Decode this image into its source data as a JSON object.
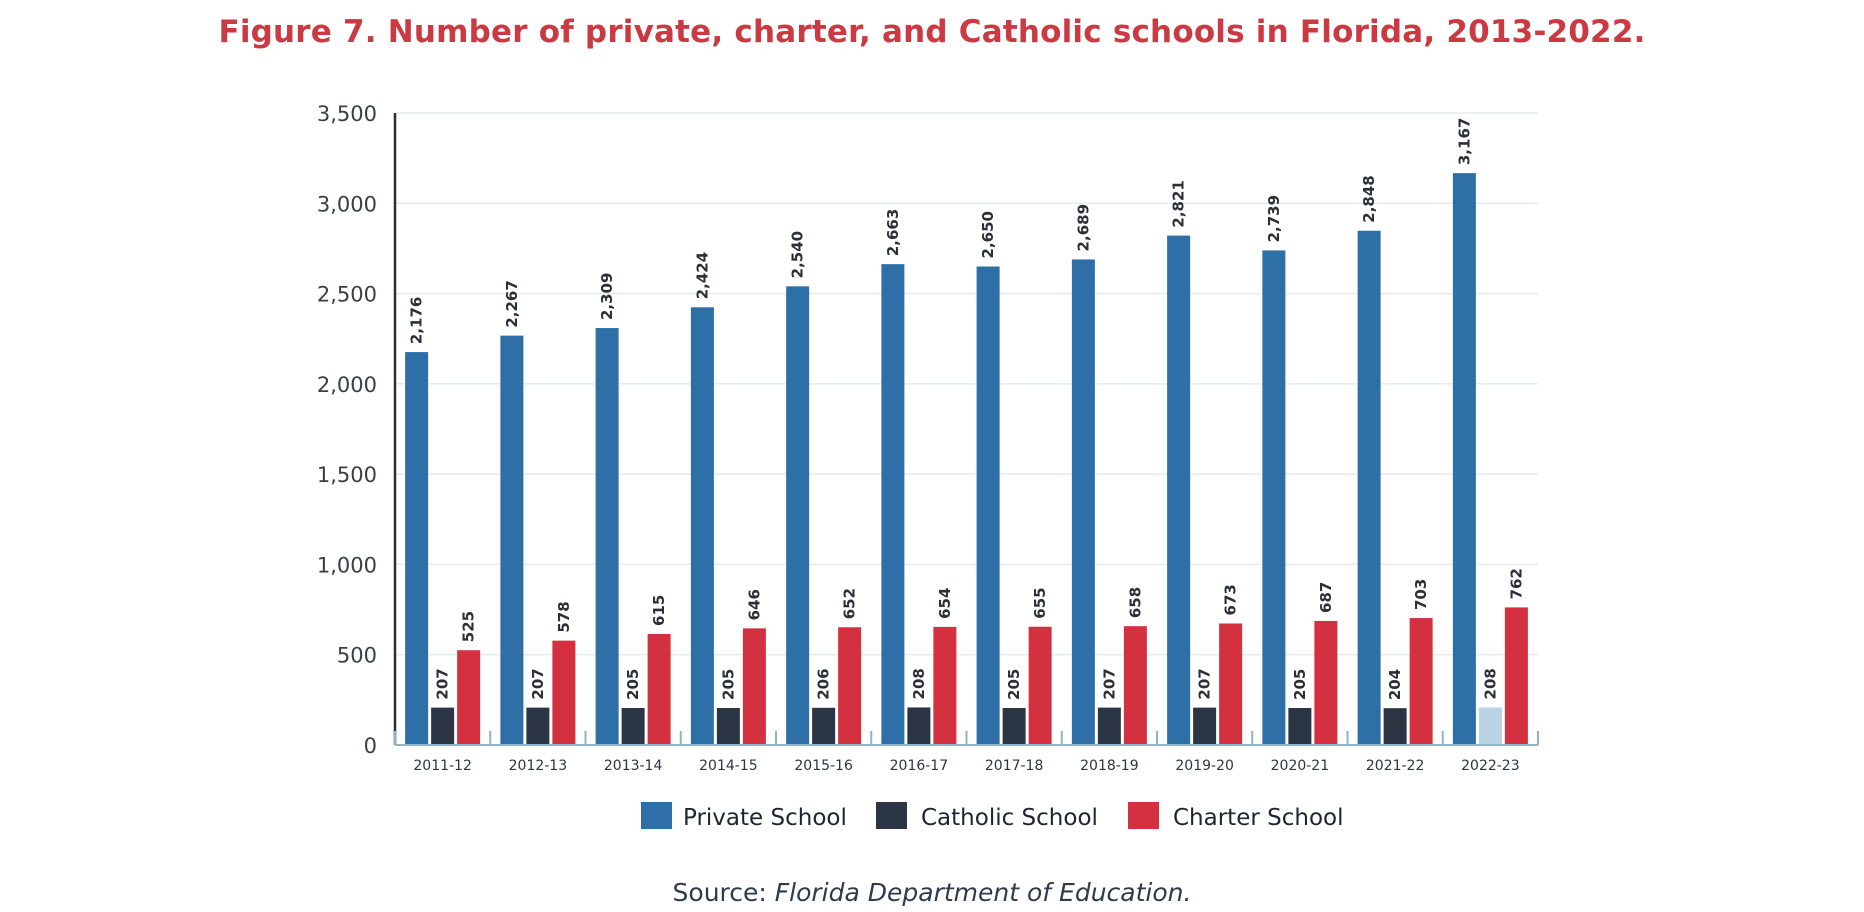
{
  "chart_data": {
    "type": "bar",
    "title": "Figure 7. Number of private, charter, and Catholic schools in Florida, 2013-2022.",
    "xlabel": "",
    "ylabel": "",
    "ylim": [
      0,
      3500
    ],
    "yticks": [
      0,
      500,
      1000,
      1500,
      2000,
      2500,
      3000,
      3500
    ],
    "ytick_labels": [
      "0",
      "500",
      "1,000",
      "1,500",
      "2,000",
      "2,500",
      "3,000",
      "3,500"
    ],
    "grid": true,
    "legend_position": "bottom",
    "categories": [
      "2011-12",
      "2012-13",
      "2013-14",
      "2014-15",
      "2015-16",
      "2016-17",
      "2017-18",
      "2018-19",
      "2019-20",
      "2020-21",
      "2021-22",
      "2022-23"
    ],
    "series": [
      {
        "name": "Private School",
        "color": "#2e6fa8",
        "values": [
          2176,
          2267,
          2309,
          2424,
          2540,
          2663,
          2650,
          2689,
          2821,
          2739,
          2848,
          3167
        ],
        "labels": [
          "2,176",
          "2,267",
          "2,309",
          "2,424",
          "2,540",
          "2,663",
          "2,650",
          "2,689",
          "2,821",
          "2,739",
          "2,848",
          "3,167"
        ]
      },
      {
        "name": "Catholic School",
        "color": "#2c3544",
        "highlight_last_color": "#b8d3e3",
        "values": [
          207,
          207,
          205,
          205,
          206,
          208,
          205,
          207,
          207,
          205,
          204,
          208
        ],
        "labels": [
          "207",
          "207",
          "205",
          "205",
          "206",
          "208",
          "205",
          "207",
          "207",
          "205",
          "204",
          "208"
        ]
      },
      {
        "name": "Charter School",
        "color": "#d3313f",
        "values": [
          525,
          578,
          615,
          646,
          652,
          654,
          655,
          658,
          673,
          687,
          703,
          762
        ],
        "labels": [
          "525",
          "578",
          "615",
          "646",
          "652",
          "654",
          "655",
          "658",
          "673",
          "687",
          "703",
          "762"
        ]
      }
    ]
  },
  "source": {
    "prefix": "Source: ",
    "name": "Florida Department of Education."
  }
}
